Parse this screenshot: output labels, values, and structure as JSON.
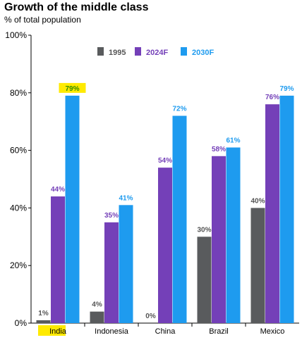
{
  "chart_data": {
    "type": "bar",
    "title": "Growth of the middle class",
    "subtitle": "% of total population",
    "categories": [
      "India",
      "Indonesia",
      "China",
      "Brazil",
      "Mexico"
    ],
    "highlighted_category": "India",
    "highlighted_value": "79%",
    "ylim": [
      0,
      100
    ],
    "y_ticks": [
      "0%",
      "20%",
      "40%",
      "60%",
      "80%",
      "100%"
    ],
    "legend_position": "top-center",
    "series": [
      {
        "name": "1995",
        "color": "#595b5d",
        "label_color": "#555555",
        "values": [
          1,
          4,
          0,
          30,
          40
        ],
        "labels": [
          "1%",
          "4%",
          "0%",
          "30%",
          "40%"
        ]
      },
      {
        "name": "2024F",
        "color": "#7440b8",
        "label_color": "#7440b8",
        "values": [
          44,
          35,
          54,
          58,
          76
        ],
        "labels": [
          "44%",
          "35%",
          "54%",
          "58%",
          "76%"
        ]
      },
      {
        "name": "2030F",
        "color": "#1e9bef",
        "label_color": "#1e9bef",
        "values": [
          79,
          41,
          72,
          61,
          79
        ],
        "labels": [
          "79%",
          "41%",
          "72%",
          "61%",
          "79%"
        ]
      }
    ],
    "highlight_color": "#ffea00",
    "highlight_label_color": "#2e8b00"
  }
}
